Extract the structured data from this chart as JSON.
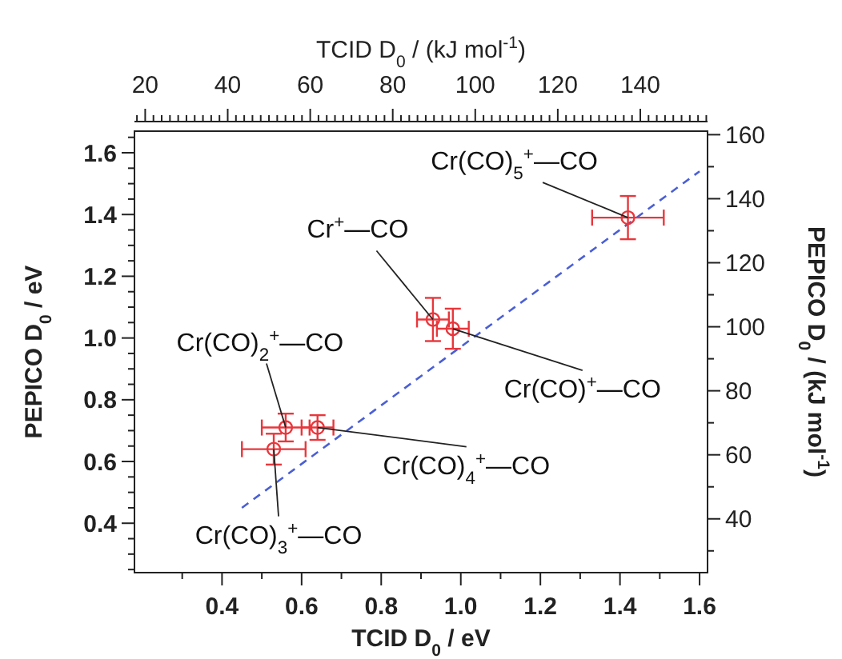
{
  "chart_data": {
    "type": "scatter",
    "xlabel": "TCID D$_{0}$ / eV",
    "ylabel": "PEPICO D$_{0}$ / eV",
    "x2label": "TCID D$_{0}$ / (kJ mol$^{-1}$)",
    "y2label": "PEPICO D$_{0}$ / (kJ mol$^{-1}$)",
    "xlim": [
      0.18,
      1.62
    ],
    "ylim": [
      0.24,
      1.67
    ],
    "x2lim": [
      17.4,
      156.3
    ],
    "y2lim": [
      23.2,
      161.1
    ],
    "xticks": [
      {
        "value": 0.3,
        "label": null
      },
      0.4,
      {
        "value": 0.5,
        "label": null
      },
      0.6,
      {
        "value": 0.7,
        "label": null
      },
      0.8,
      {
        "value": 0.9,
        "label": null
      },
      {
        "value": 1.0,
        "label": "1.0"
      },
      {
        "value": 1.1,
        "label": null
      },
      1.2,
      {
        "value": 1.3,
        "label": null
      },
      1.4,
      {
        "value": 1.5,
        "label": null
      },
      1.6
    ],
    "yticks": [
      {
        "value": 0.25,
        "label": null
      },
      {
        "value": 0.3,
        "label": null
      },
      {
        "value": 0.35,
        "label": null
      },
      0.4,
      {
        "value": 0.45,
        "label": null
      },
      {
        "value": 0.5,
        "label": null
      },
      {
        "value": 0.55,
        "label": null
      },
      0.6,
      {
        "value": 0.65,
        "label": null
      },
      {
        "value": 0.7,
        "label": null
      },
      {
        "value": 0.75,
        "label": null
      },
      0.8,
      {
        "value": 0.85,
        "label": null
      },
      {
        "value": 0.9,
        "label": null
      },
      {
        "value": 0.95,
        "label": null
      },
      {
        "value": 1.0,
        "label": "1.0"
      },
      {
        "value": 1.05,
        "label": null
      },
      {
        "value": 1.1,
        "label": null
      },
      {
        "value": 1.15,
        "label": null
      },
      1.2,
      {
        "value": 1.25,
        "label": null
      },
      {
        "value": 1.3,
        "label": null
      },
      {
        "value": 1.35,
        "label": null
      },
      1.4,
      {
        "value": 1.45,
        "label": null
      },
      {
        "value": 1.5,
        "label": null
      },
      {
        "value": 1.55,
        "label": null
      },
      1.6,
      {
        "value": 1.65,
        "label": null
      }
    ],
    "y2ticks": [
      {
        "value": 30,
        "label": null
      },
      40,
      {
        "value": 50,
        "label": null
      },
      60,
      {
        "value": 70,
        "label": null
      },
      80,
      {
        "value": 90,
        "label": null
      },
      100,
      {
        "value": 110,
        "label": null
      },
      120,
      {
        "value": 130,
        "label": null
      },
      140,
      {
        "value": 150,
        "label": null
      },
      160
    ],
    "x2ticks": [
      {
        "value": 18,
        "label": null
      },
      20,
      {
        "value": 22,
        "label": null
      },
      {
        "value": 24,
        "label": null
      },
      {
        "value": 26,
        "label": null
      },
      {
        "value": 28,
        "label": null
      },
      {
        "value": 30,
        "label": null
      },
      {
        "value": 32,
        "label": null
      },
      {
        "value": 34,
        "label": null
      },
      {
        "value": 36,
        "label": null
      },
      {
        "value": 38,
        "label": null
      },
      40,
      {
        "value": 42,
        "label": null
      },
      {
        "value": 44,
        "label": null
      },
      {
        "value": 46,
        "label": null
      },
      {
        "value": 48,
        "label": null
      },
      {
        "value": 50,
        "label": null
      },
      {
        "value": 52,
        "label": null
      },
      {
        "value": 54,
        "label": null
      },
      {
        "value": 56,
        "label": null
      },
      {
        "value": 58,
        "label": null
      },
      60,
      {
        "value": 62,
        "label": null
      },
      {
        "value": 64,
        "label": null
      },
      {
        "value": 66,
        "label": null
      },
      {
        "value": 68,
        "label": null
      },
      {
        "value": 70,
        "label": null
      },
      {
        "value": 72,
        "label": null
      },
      {
        "value": 74,
        "label": null
      },
      {
        "value": 76,
        "label": null
      },
      {
        "value": 78,
        "label": null
      },
      80,
      {
        "value": 82,
        "label": null
      },
      {
        "value": 84,
        "label": null
      },
      {
        "value": 86,
        "label": null
      },
      {
        "value": 88,
        "label": null
      },
      {
        "value": 90,
        "label": null
      },
      {
        "value": 92,
        "label": null
      },
      {
        "value": 94,
        "label": null
      },
      {
        "value": 96,
        "label": null
      },
      {
        "value": 98,
        "label": null
      },
      100,
      {
        "value": 102,
        "label": null
      },
      {
        "value": 104,
        "label": null
      },
      {
        "value": 106,
        "label": null
      },
      {
        "value": 108,
        "label": null
      },
      {
        "value": 110,
        "label": null
      },
      {
        "value": 112,
        "label": null
      },
      {
        "value": 114,
        "label": null
      },
      {
        "value": 116,
        "label": null
      },
      {
        "value": 118,
        "label": null
      },
      120,
      {
        "value": 122,
        "label": null
      },
      {
        "value": 124,
        "label": null
      },
      {
        "value": 126,
        "label": null
      },
      {
        "value": 128,
        "label": null
      },
      {
        "value": 130,
        "label": null
      },
      {
        "value": 132,
        "label": null
      },
      {
        "value": 134,
        "label": null
      },
      {
        "value": 136,
        "label": null
      },
      {
        "value": 138,
        "label": null
      },
      140,
      {
        "value": 142,
        "label": null
      },
      {
        "value": 144,
        "label": null
      },
      {
        "value": 146,
        "label": null
      },
      {
        "value": 148,
        "label": null
      },
      {
        "value": 150,
        "label": null
      },
      {
        "value": 152,
        "label": null
      },
      {
        "value": 154,
        "label": null
      },
      {
        "value": 156,
        "label": null
      }
    ],
    "grid": false,
    "series": [
      {
        "type": "line",
        "color": "#4a5fd6",
        "line_style": "dashed",
        "marker": "none",
        "x": [
          0.45,
          1.6
        ],
        "values": [
          0.45,
          1.54
        ]
      },
      {
        "color": "#e8373c",
        "marker": "circle",
        "x": [
          1.42,
          0.93,
          0.98,
          0.56,
          0.64,
          0.53
        ],
        "values": [
          1.39,
          1.06,
          1.03,
          0.71,
          0.71,
          0.64
        ],
        "errors": [
          0.07,
          0.07,
          0.065,
          0.045,
          0.04,
          0.05
        ],
        "xerrors": [
          0.09,
          0.04,
          0.04,
          0.06,
          0.04,
          0.08
        ]
      }
    ],
    "annotations": [
      {
        "text": "Cr(CO)$_{5}$$^{+}$—CO",
        "x": 1.42,
        "y": 1.39
      },
      {
        "text": "Cr$^{+}$—CO",
        "x": 0.93,
        "y": 1.06
      },
      {
        "text": "Cr(CO)$^{+}$—CO",
        "x": 0.98,
        "y": 1.03
      },
      {
        "text": "Cr(CO)$_{2}$$^{+}$—CO",
        "x": 0.56,
        "y": 0.71
      },
      {
        "text": "Cr(CO)$_{4}$$^{+}$—CO",
        "x": 0.64,
        "y": 0.71
      },
      {
        "text": "Cr(CO)$_{3}$$^{+}$—CO",
        "x": 0.53,
        "y": 0.64
      }
    ]
  }
}
